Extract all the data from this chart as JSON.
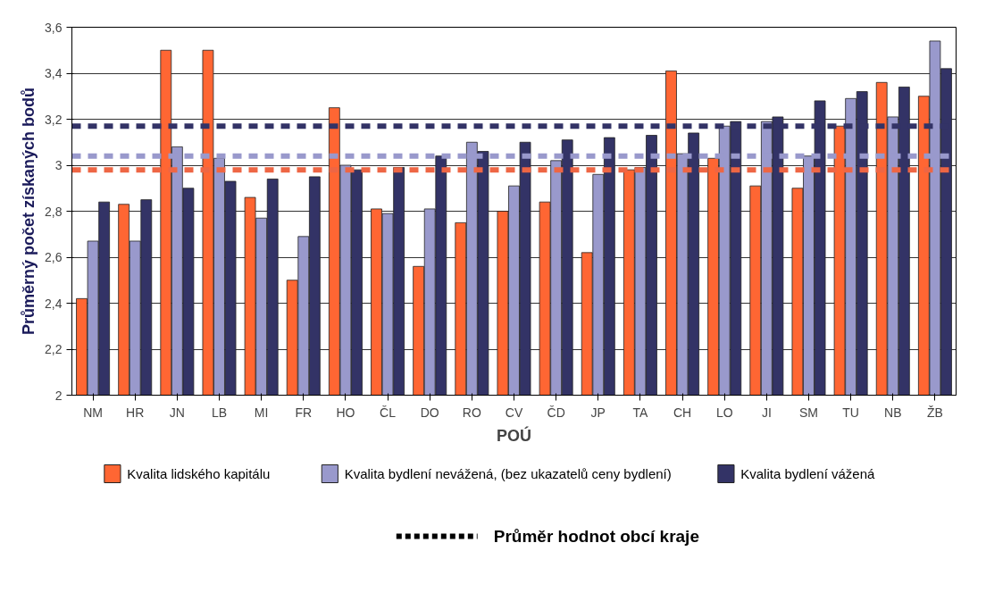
{
  "chart_data": {
    "type": "bar",
    "xlabel": "POÚ",
    "ylabel": "Průměrný počet získaných bodů",
    "categories": [
      "NM",
      "HR",
      "JN",
      "LB",
      "MI",
      "FR",
      "HO",
      "ČL",
      "DO",
      "RO",
      "CV",
      "ČD",
      "JP",
      "TA",
      "CH",
      "LO",
      "JI",
      "SM",
      "TU",
      "NB",
      "ŽB"
    ],
    "series": [
      {
        "name": "Kvalita lidského kapitálu",
        "color": "#ff6633",
        "values": [
          2.42,
          2.83,
          3.5,
          3.5,
          2.86,
          2.5,
          3.25,
          2.81,
          2.56,
          2.75,
          2.8,
          2.84,
          2.62,
          2.98,
          3.41,
          3.03,
          2.91,
          2.9,
          3.17,
          3.36,
          3.3
        ]
      },
      {
        "name": "Kvalita bydlení nevážená, (bez ukazatelů ceny bydlení)",
        "color": "#9999cc",
        "values": [
          2.67,
          2.67,
          3.08,
          3.03,
          2.77,
          2.69,
          3.0,
          2.79,
          2.81,
          3.1,
          2.91,
          3.02,
          2.96,
          2.99,
          3.05,
          3.17,
          3.19,
          3.04,
          3.29,
          3.21,
          3.54
        ]
      },
      {
        "name": "Kvalita bydlení vážená",
        "color": "#333366",
        "values": [
          2.84,
          2.85,
          2.9,
          2.93,
          2.94,
          2.95,
          2.98,
          2.99,
          3.04,
          3.06,
          3.1,
          3.11,
          3.12,
          3.13,
          3.14,
          3.19,
          3.21,
          3.28,
          3.32,
          3.34,
          3.42
        ]
      }
    ],
    "ylim": [
      2,
      3.6
    ],
    "yticks": [
      2,
      {
        "value": 2.2,
        "label": "2,2"
      },
      {
        "value": 2.4,
        "label": "2,4"
      },
      {
        "value": 2.6,
        "label": "2,6"
      },
      {
        "value": 2.8,
        "label": "2,8"
      },
      3,
      {
        "value": 3.2,
        "label": "3,2"
      },
      {
        "value": 3.4,
        "label": "3,4"
      },
      {
        "value": 3.6,
        "label": "3,6"
      }
    ],
    "grid": "y",
    "legend": "bottom",
    "ref_lines": [
      {
        "axis": "y",
        "value": 3.17,
        "color": "#333366",
        "line_style": "dashed"
      },
      {
        "axis": "y",
        "value": 3.04,
        "color": "#9999cc",
        "line_style": "dashed"
      },
      {
        "axis": "y",
        "value": 2.98,
        "color": "#ee6644",
        "line_style": "dashed"
      }
    ],
    "annotations": [
      "Průměr hodnot obcí kraje"
    ]
  }
}
